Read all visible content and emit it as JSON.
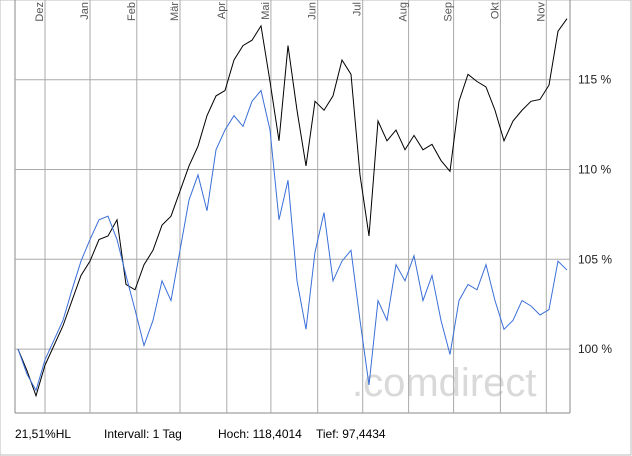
{
  "chart_data": {
    "type": "line",
    "series": [
      {
        "color": "#000000",
        "values": [
          100.0,
          98.8,
          97.4,
          99.1,
          100.2,
          101.3,
          102.7,
          104.1,
          104.9,
          106.1,
          106.3,
          107.2,
          103.6,
          103.3,
          104.7,
          105.5,
          106.9,
          107.4,
          108.8,
          110.2,
          111.3,
          113.0,
          114.1,
          114.4,
          116.1,
          116.9,
          117.2,
          118.0,
          114.9,
          111.6,
          116.9,
          113.3,
          110.2,
          113.8,
          113.3,
          114.1,
          116.1,
          115.3,
          109.7,
          106.3,
          112.7,
          111.6,
          112.2,
          111.1,
          111.9,
          111.1,
          111.4,
          110.5,
          109.9,
          113.8,
          115.3,
          114.9,
          114.6,
          113.3,
          111.6,
          112.7,
          113.3,
          113.8,
          113.9,
          114.7,
          117.7,
          118.4
        ]
      },
      {
        "color": "#3a6fd8",
        "values": [
          100.0,
          98.6,
          97.7,
          99.4,
          100.5,
          101.6,
          103.3,
          104.9,
          106.1,
          107.2,
          107.4,
          106.1,
          104.1,
          102.2,
          100.2,
          101.6,
          103.8,
          102.7,
          105.5,
          108.3,
          109.7,
          107.7,
          111.1,
          112.2,
          113.0,
          112.4,
          113.8,
          114.4,
          112.2,
          107.2,
          109.4,
          103.8,
          101.1,
          105.4,
          107.6,
          103.8,
          104.9,
          105.5,
          101.6,
          98.0,
          102.7,
          101.6,
          104.7,
          103.8,
          105.2,
          102.7,
          104.1,
          101.6,
          99.7,
          102.7,
          103.6,
          103.3,
          104.7,
          102.7,
          101.1,
          101.6,
          102.7,
          102.4,
          101.9,
          102.2,
          104.9,
          104.4
        ]
      }
    ],
    "xlim": [
      0,
      61
    ],
    "xticks": [
      {
        "value": 3,
        "label": "Dez"
      },
      {
        "value": 8,
        "label": "Jan"
      },
      {
        "value": 13.2,
        "label": "Feb"
      },
      {
        "value": 18,
        "label": "Mär"
      },
      {
        "value": 23.2,
        "label": "Apr"
      },
      {
        "value": 28.1,
        "label": "Mai"
      },
      {
        "value": 33.3,
        "label": "Jun"
      },
      {
        "value": 38.3,
        "label": "Jul"
      },
      {
        "value": 43.4,
        "label": "Aug"
      },
      {
        "value": 48.4,
        "label": "Sep"
      },
      {
        "value": 53.6,
        "label": "Okt"
      },
      {
        "value": 58.7,
        "label": "Nov"
      }
    ],
    "ylim": [
      96.44,
      119.44
    ],
    "yticks": [
      {
        "value": 100,
        "label": "100 %"
      },
      {
        "value": 105,
        "label": "105 %"
      },
      {
        "value": 110,
        "label": "110 %"
      },
      {
        "value": 115,
        "label": "115 %"
      }
    ],
    "grid": true,
    "watermark": ".comdirect",
    "footer": [
      "21,51%HL",
      "Intervall: 1 Tag",
      "Hoch: 118,4014",
      "Tief: 97,4434"
    ]
  }
}
